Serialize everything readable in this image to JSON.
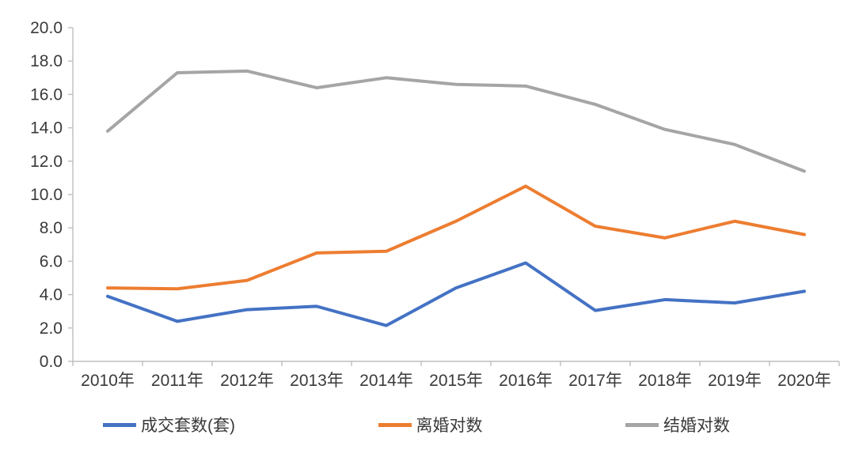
{
  "chart_data": {
    "type": "line",
    "title": "",
    "xlabel": "",
    "ylabel": "",
    "categories": [
      "2010年",
      "2011年",
      "2012年",
      "2013年",
      "2014年",
      "2015年",
      "2016年",
      "2017年",
      "2018年",
      "2019年",
      "2020年"
    ],
    "series": [
      {
        "name": "成交套数(套)",
        "color": "#4472C4",
        "values": [
          3.9,
          2.4,
          3.1,
          3.3,
          2.15,
          4.4,
          5.9,
          3.05,
          3.7,
          3.5,
          4.2
        ]
      },
      {
        "name": "离婚对数",
        "color": "#ED7D31",
        "values": [
          4.4,
          4.35,
          4.85,
          6.5,
          6.6,
          8.4,
          10.5,
          8.1,
          7.4,
          8.4,
          7.6
        ]
      },
      {
        "name": "结婚对数",
        "color": "#A5A5A5",
        "values": [
          13.8,
          17.3,
          17.4,
          16.4,
          17.0,
          16.6,
          16.5,
          15.4,
          13.9,
          13.0,
          11.4
        ]
      }
    ],
    "ylim": [
      0,
      20
    ],
    "ytick_step": 2,
    "ytick_labels": [
      "0.0",
      "2.0",
      "4.0",
      "6.0",
      "8.0",
      "10.0",
      "12.0",
      "14.0",
      "16.0",
      "18.0",
      "20.0"
    ],
    "grid": false,
    "legend_position": "bottom",
    "axis_color": "#BFBFBF",
    "text_color": "#3a3a3a",
    "line_width": 4
  }
}
